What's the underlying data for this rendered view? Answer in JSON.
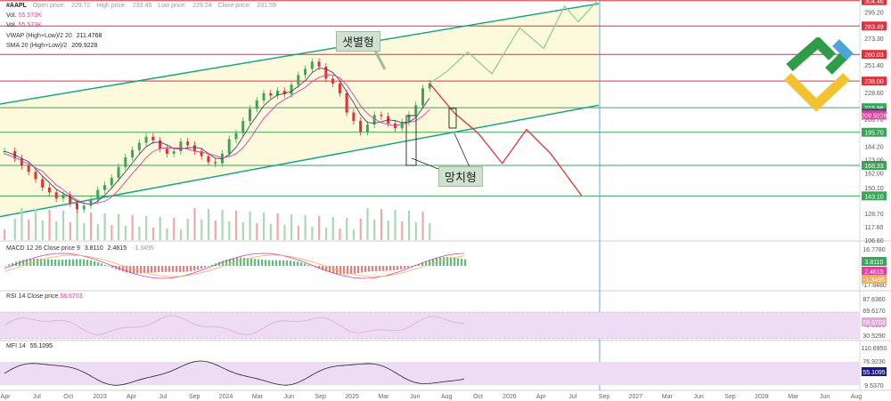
{
  "header": {
    "ticker": "#AAPL",
    "open_label": "Open price:",
    "open_value": "229.72",
    "high_label": "High price:",
    "high_value": "233.45",
    "low_label": "Low price:",
    "low_value": "229.24",
    "close_label": "Close price:",
    "close_value": "231.59"
  },
  "legend": {
    "vol1_label": "Vol.",
    "vol1_value": "55.573K",
    "vol2_label": "Vol.",
    "vol2_value": "55.573K",
    "vwap_label": "VWAP (High+Low)/2 20",
    "vwap_value": "211.4768",
    "sma_label": "SMA 20 (High+Low)/2",
    "sma_value": "209.9228",
    "macd_label": "MACD 12 26 Close price 9",
    "macd_v1": "3.8110",
    "macd_v2": "2.4615",
    "macd_v3": "-1.3495",
    "rsi_label": "RSI 14 Close price",
    "rsi_value": "58.6703",
    "mfi_label": "MFI 14",
    "mfi_value": "55.1095"
  },
  "annotations": {
    "ascending_triangle": "샛별형",
    "hammer": "망치형"
  },
  "colors": {
    "up": "#3aa657",
    "down": "#e0303a",
    "channel": "#1aa58a",
    "resistance": "#e0303a",
    "support": "#3aa657",
    "forecast_up": "#8fd18f",
    "forecast_down": "#e0303a",
    "channel_fill": "#fdf9dd",
    "indicator_band": "#eedcf5",
    "vline": "#4a90e2"
  },
  "chart_data": {
    "type": "line",
    "x_labels": [
      "Apr",
      "Jul",
      "Oct",
      "2023",
      "Apr",
      "Jul",
      "Sep",
      "2024",
      "Mar",
      "Jun",
      "Sep",
      "2025",
      "Mar",
      "Jun",
      "Aug",
      "Oct",
      "2026",
      "Apr",
      "Jul",
      "Sep",
      "2027",
      "Mar",
      "Jun",
      "Sep",
      "2028",
      "Mar",
      "Jun",
      "Aug"
    ],
    "price_axis_ticks": [
      "295.20",
      "273.30",
      "251.40",
      "228.60",
      "206.70",
      "184.20",
      "173.00",
      "162.00",
      "150.10",
      "128.70",
      "117.60",
      "106.60"
    ],
    "price_ylim": [
      106.6,
      305.0
    ],
    "price_levels": [
      {
        "label": "304.46",
        "value": 304.46,
        "kind": "resistance"
      },
      {
        "label": "283.49",
        "value": 283.49,
        "kind": "resistance"
      },
      {
        "label": "260.03",
        "value": 260.03,
        "kind": "resistance"
      },
      {
        "label": "238.00",
        "value": 238.0,
        "kind": "resistance"
      },
      {
        "label": "215.96",
        "value": 215.96,
        "kind": "support"
      },
      {
        "label": "195.70",
        "value": 195.7,
        "kind": "support"
      },
      {
        "label": "168.33",
        "value": 168.33,
        "kind": "support"
      },
      {
        "label": "143.10",
        "value": 143.1,
        "kind": "support"
      }
    ],
    "current_price_badges": [
      {
        "label": "211.4768",
        "value": 211.4768,
        "color": "#3a4a6a"
      },
      {
        "label": "209.9228",
        "value": 209.9228,
        "color": "#e040a0"
      }
    ],
    "price_series": [
      [
        0,
        180
      ],
      [
        3,
        174
      ],
      [
        5,
        168
      ],
      [
        7,
        163
      ],
      [
        9,
        157
      ],
      [
        11,
        150
      ],
      [
        13,
        146
      ],
      [
        15,
        141
      ],
      [
        17,
        144
      ],
      [
        19,
        137
      ],
      [
        21,
        132
      ],
      [
        23,
        135
      ],
      [
        25,
        140
      ],
      [
        27,
        148
      ],
      [
        29,
        152
      ],
      [
        31,
        158
      ],
      [
        33,
        167
      ],
      [
        35,
        175
      ],
      [
        37,
        181
      ],
      [
        39,
        187
      ],
      [
        41,
        192
      ],
      [
        43,
        189
      ],
      [
        45,
        182
      ],
      [
        47,
        178
      ],
      [
        49,
        180
      ],
      [
        51,
        188
      ],
      [
        53,
        185
      ],
      [
        55,
        180
      ],
      [
        57,
        176
      ],
      [
        59,
        171
      ],
      [
        61,
        170
      ],
      [
        63,
        178
      ],
      [
        65,
        190
      ],
      [
        67,
        195
      ],
      [
        69,
        205
      ],
      [
        71,
        215
      ],
      [
        73,
        222
      ],
      [
        75,
        228
      ],
      [
        77,
        226
      ],
      [
        79,
        230
      ],
      [
        81,
        227
      ],
      [
        83,
        235
      ],
      [
        85,
        243
      ],
      [
        87,
        248
      ],
      [
        89,
        254
      ],
      [
        91,
        250
      ],
      [
        93,
        240
      ],
      [
        95,
        236
      ],
      [
        97,
        228
      ],
      [
        99,
        212
      ],
      [
        101,
        205
      ],
      [
        103,
        196
      ],
      [
        105,
        202
      ],
      [
        107,
        210
      ],
      [
        109,
        209
      ],
      [
        111,
        203
      ],
      [
        113,
        199
      ],
      [
        115,
        204
      ],
      [
        117,
        210
      ],
      [
        119,
        218
      ],
      [
        121,
        232
      ],
      [
        123,
        236
      ]
    ],
    "forecast_up": [
      [
        123,
        236
      ],
      [
        128,
        246
      ],
      [
        134,
        262
      ],
      [
        141,
        244
      ],
      [
        149,
        282
      ],
      [
        156,
        265
      ],
      [
        162,
        300
      ],
      [
        166,
        287
      ],
      [
        172,
        306
      ]
    ],
    "forecast_down": [
      [
        123,
        236
      ],
      [
        130,
        212
      ],
      [
        137,
        195
      ],
      [
        144,
        170
      ],
      [
        151,
        198
      ],
      [
        158,
        178
      ],
      [
        167,
        143
      ]
    ],
    "macd_axis_ticks": [
      "16.7780",
      "7.9810",
      "-0.7310",
      "-9.4760",
      "-17.8480"
    ],
    "rsi_axis_ticks": [
      "87.6360",
      "69.6170",
      "49.5980",
      "30.5290"
    ],
    "mfi_axis_ticks": [
      "110.6950",
      "76.9230",
      "43.1400",
      "9.5370"
    ]
  }
}
